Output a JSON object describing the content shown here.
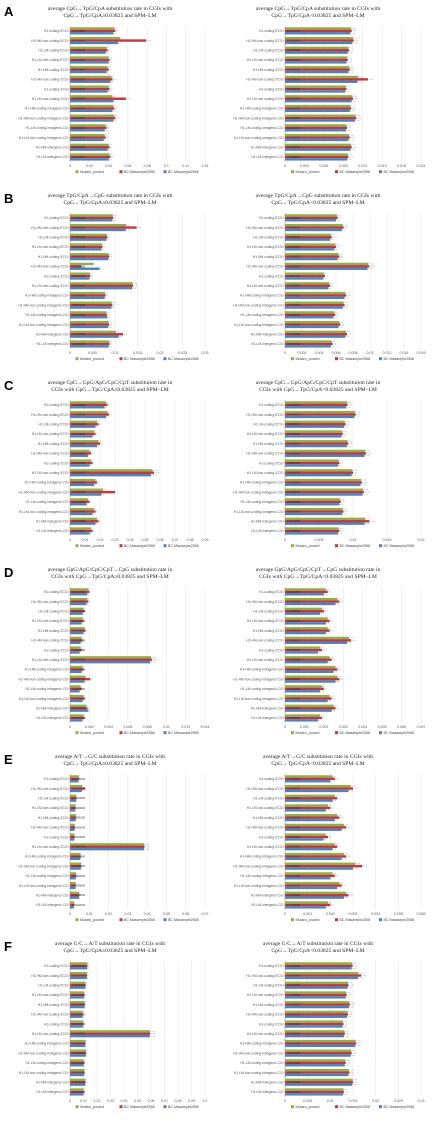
{
  "colors": {
    "s1": "#8db04a",
    "s2": "#c0393b",
    "s3": "#4f81bd",
    "grid": "#d9d9d9",
    "err": "#888888"
  },
  "legend": [
    "Mutaro_pooled",
    "BC Masample2558",
    "BC Masample2558"
  ],
  "categories": [
    "H1-coding-5'CGI",
    "H1-HM-non-coding-5'CGI",
    "H1-LM-coding-5'CGI",
    "H1-LM-non-coding-5'CGI",
    "H1-HM-coding-3'CGI",
    "H1-HM-non-coding-3'CGI",
    "H1-coding-3'CGI",
    "H1-LM-non-coding-3'CGI",
    "H1-HM-coding-intragenic-CGI",
    "H1-HM-non-coding-intragenic-CGI",
    "H1-LM-coding-intragenic-CGI",
    "H1-LM-non-coding-intragenic-CGI",
    "H1-HM-intergenic-CGI",
    "H1-LM-intergenic-CGI"
  ],
  "panels": [
    {
      "label": "A",
      "titles": [
        [
          "average CpG→TpG/CpA substitution rate in CGIs with",
          "CpG→TpG/CpA≥0.03825 and SPM–LM"
        ],
        [
          "average CpG→TpG/CpA substitution rate in CGIs with",
          "CpG→TpG/CpA<0.03825 and SPM–LM"
        ]
      ]
    },
    {
      "label": "B",
      "titles": [
        [
          "average TpG/CpA→CpG substitution rate in CGIs with",
          "CpG→TpG/CpA≥0.03825 and SPM–LM"
        ],
        [
          "average TpG/CpA→CpG substitution rate in CGIs with",
          "CpG→TpG/CpA<0.03825 and SPM–LM"
        ]
      ]
    },
    {
      "label": "C",
      "titles": [
        [
          "average CpG→GpG/ApG/CpC/CpT substitution rate in",
          "CGIs with CpG→TpG/CpA≥0.03825 and SPM–LM"
        ],
        [
          "average CpG→GpG/ApG/CpC/CpT substitution rate in",
          "CGIs with CpG→TpG/CpA<0.03825 and SPM–LM"
        ]
      ]
    },
    {
      "label": "D",
      "titles": [
        [
          "average GpG/ApG/CpC/CpT→CpG substitution rate in",
          "CGIs with CpG→TpG/CpA≥0.03825 and SPM–LM"
        ],
        [
          "average GpG/ApG/CpC/CpT→CpG substitution rate in",
          "CGIs with CpG→TpG/CpA<0.03825 and SPM–LM"
        ]
      ]
    },
    {
      "label": "E",
      "titles": [
        [
          "average A/T→G/C substitution rate in CGIs with",
          "CpG→TpG/CpA≥0.03825 and SPM–LM"
        ],
        [
          "average A/T→G/C substitution rate in CGIs with",
          "CpG→TpG/CpA<0.03825 and SPM–LM"
        ]
      ]
    },
    {
      "label": "F",
      "titles": [
        [
          "average G/C→A/T substitution rate in CGIs with",
          "CpG→TpG/CpA≥0.03825 and SPM–LM"
        ],
        [
          "average G/C→A/T substitution rate in CGIs with",
          "CpG→TpG/CpA<0.03825 and SPM–LM"
        ]
      ]
    }
  ],
  "chart_data": [
    {
      "type": "bar",
      "orientation": "horizontal",
      "panel": "A-left",
      "xlim": [
        0,
        0.14
      ],
      "ticks": [
        "0",
        "0.02",
        "0.04",
        "0.06",
        "0.08",
        "0.1",
        "0.12",
        "0.14"
      ],
      "series": [
        {
          "name": "Mutaro_pooled",
          "values": [
            0.046,
            0.052,
            0.038,
            0.04,
            0.039,
            0.043,
            0.04,
            0.044,
            0.045,
            0.046,
            0.037,
            0.036,
            0.04,
            0.041
          ]
        },
        {
          "name": "BC Masample2558",
          "values": [
            0.047,
            0.079,
            0.039,
            0.041,
            0.04,
            0.044,
            0.041,
            0.058,
            0.046,
            0.047,
            0.038,
            0.037,
            0.041,
            0.042
          ]
        },
        {
          "name": "BC Masample2558",
          "values": [
            0.045,
            0.05,
            0.037,
            0.04,
            0.038,
            0.042,
            0.039,
            0.045,
            0.044,
            0.045,
            0.036,
            0.035,
            0.039,
            0.04
          ]
        }
      ]
    },
    {
      "type": "bar",
      "orientation": "horizontal",
      "panel": "A-right",
      "xlim": [
        0,
        0.021
      ],
      "ticks": [
        "0",
        "0.003",
        "0.006",
        "0.009",
        "0.012",
        "0.015",
        "0.018",
        "0.021"
      ],
      "series": [
        {
          "name": "Mutaro_pooled",
          "values": [
            0.0102,
            0.0105,
            0.0098,
            0.0096,
            0.0099,
            0.0113,
            0.0094,
            0.0104,
            0.0101,
            0.0109,
            0.0095,
            0.0099,
            0.0102,
            0.0097
          ]
        },
        {
          "name": "BC Masample2558",
          "values": [
            0.0103,
            0.0106,
            0.0099,
            0.0097,
            0.01,
            0.0128,
            0.0095,
            0.0105,
            0.0102,
            0.011,
            0.0096,
            0.01,
            0.0103,
            0.0098
          ]
        },
        {
          "name": "BC Masample2558",
          "values": [
            0.0101,
            0.0104,
            0.0097,
            0.0095,
            0.0098,
            0.0112,
            0.0093,
            0.0103,
            0.01,
            0.0108,
            0.0094,
            0.0098,
            0.0101,
            0.0096
          ]
        }
      ]
    },
    {
      "type": "bar",
      "orientation": "horizontal",
      "panel": "B-left",
      "xlim": [
        0,
        0.03
      ],
      "ticks": [
        "0",
        "0.005",
        "0.01",
        "0.015",
        "0.02",
        "0.025",
        "0.03"
      ],
      "series": [
        {
          "name": "Mutaro_pooled",
          "values": [
            0.0095,
            0.0125,
            0.0082,
            0.0071,
            0.0086,
            0.0052,
            0.0044,
            0.0139,
            0.0078,
            0.0093,
            0.0081,
            0.0086,
            0.0102,
            0.0087
          ]
        },
        {
          "name": "BC Masample2558",
          "values": [
            0.0096,
            0.0148,
            0.0083,
            0.0072,
            0.0087,
            0.0025,
            0.0045,
            0.014,
            0.0079,
            0.0094,
            0.0082,
            0.0087,
            0.0118,
            0.0088
          ]
        },
        {
          "name": "BC Masample2558",
          "values": [
            0.0094,
            0.0124,
            0.0081,
            0.007,
            0.0085,
            0.0066,
            0.0043,
            0.0138,
            0.0077,
            0.0092,
            0.0083,
            0.0085,
            0.0108,
            0.0086
          ]
        }
      ]
    },
    {
      "type": "bar",
      "orientation": "horizontal",
      "panel": "B-right",
      "xlim": [
        0,
        0.016
      ],
      "ticks": [
        "0",
        "0.002",
        "0.004",
        "0.006",
        "0.008",
        "0.01",
        "0.012",
        "0.014",
        "0.016"
      ],
      "series": [
        {
          "name": "Mutaro_pooled",
          "values": [
            0.0061,
            0.0068,
            0.0054,
            0.0059,
            0.0063,
            0.0098,
            0.0046,
            0.0052,
            0.0071,
            0.0069,
            0.0058,
            0.0064,
            0.0072,
            0.0055
          ]
        },
        {
          "name": "BC Masample2558",
          "values": [
            0.0062,
            0.0069,
            0.0055,
            0.006,
            0.0064,
            0.0099,
            0.0047,
            0.0053,
            0.0072,
            0.007,
            0.0059,
            0.0065,
            0.0073,
            0.0056
          ]
        },
        {
          "name": "BC Masample2558",
          "values": [
            0.006,
            0.0067,
            0.0053,
            0.0058,
            0.0062,
            0.0097,
            0.0045,
            0.0051,
            0.007,
            0.0068,
            0.0057,
            0.0063,
            0.0071,
            0.0054
          ]
        }
      ]
    },
    {
      "type": "bar",
      "orientation": "horizontal",
      "panel": "C-left",
      "xlim": [
        0,
        0.09
      ],
      "ticks": [
        "0",
        "0.01",
        "0.02",
        "0.03",
        "0.04",
        "0.05",
        "0.06",
        "0.07",
        "0.08",
        "0.09"
      ],
      "series": [
        {
          "name": "Mutaro_pooled",
          "values": [
            0.024,
            0.025,
            0.018,
            0.016,
            0.019,
            0.013,
            0.014,
            0.055,
            0.017,
            0.022,
            0.012,
            0.016,
            0.018,
            0.014
          ]
        },
        {
          "name": "BC Masample2558",
          "values": [
            0.025,
            0.026,
            0.019,
            0.017,
            0.02,
            0.014,
            0.015,
            0.056,
            0.018,
            0.03,
            0.013,
            0.017,
            0.019,
            0.015
          ]
        },
        {
          "name": "BC Masample2558",
          "values": [
            0.023,
            0.024,
            0.017,
            0.015,
            0.018,
            0.012,
            0.013,
            0.054,
            0.016,
            0.021,
            0.011,
            0.015,
            0.017,
            0.013
          ]
        }
      ]
    },
    {
      "type": "bar",
      "orientation": "horizontal",
      "panel": "C-right",
      "xlim": [
        0,
        0.02
      ],
      "ticks": [
        "0",
        "0.005",
        "0.01",
        "0.015",
        "0.02"
      ],
      "series": [
        {
          "name": "Mutaro_pooled",
          "values": [
            0.0091,
            0.0103,
            0.0088,
            0.0084,
            0.0092,
            0.0118,
            0.0079,
            0.0099,
            0.0112,
            0.0115,
            0.0081,
            0.0085,
            0.0118,
            0.0079
          ]
        },
        {
          "name": "BC Masample2558",
          "values": [
            0.0092,
            0.0104,
            0.0089,
            0.0085,
            0.0093,
            0.0119,
            0.008,
            0.01,
            0.0113,
            0.0116,
            0.0082,
            0.0086,
            0.0124,
            0.008
          ]
        },
        {
          "name": "BC Masample2558",
          "values": [
            0.009,
            0.0102,
            0.0087,
            0.0083,
            0.0091,
            0.0117,
            0.0078,
            0.0098,
            0.0111,
            0.0114,
            0.008,
            0.0084,
            0.0117,
            0.0078
          ]
        }
      ]
    },
    {
      "type": "bar",
      "orientation": "horizontal",
      "panel": "D-left",
      "xlim": [
        0,
        0.014
      ],
      "ticks": [
        "0",
        "0.002",
        "0.004",
        "0.006",
        "0.008",
        "0.01",
        "0.012",
        "0.014"
      ],
      "series": [
        {
          "name": "Mutaro_pooled",
          "values": [
            0.0019,
            0.0018,
            0.0014,
            0.0013,
            0.0015,
            0.0012,
            0.0011,
            0.0084,
            0.0013,
            0.0016,
            0.0011,
            0.0014,
            0.0017,
            0.0014
          ]
        },
        {
          "name": "BC Masample2558",
          "values": [
            0.002,
            0.0019,
            0.0015,
            0.0014,
            0.0016,
            0.0013,
            0.0012,
            0.0085,
            0.0014,
            0.0021,
            0.0012,
            0.0015,
            0.0018,
            0.0015
          ]
        },
        {
          "name": "BC Masample2558",
          "values": [
            0.0018,
            0.0017,
            0.0013,
            0.0012,
            0.0014,
            0.0011,
            0.001,
            0.0083,
            0.0012,
            0.0015,
            0.001,
            0.0013,
            0.0019,
            0.0013
          ]
        }
      ]
    },
    {
      "type": "bar",
      "orientation": "horizontal",
      "panel": "D-right",
      "xlim": [
        0,
        0.007
      ],
      "ticks": [
        "0",
        "0.001",
        "0.002",
        "0.003",
        "0.004",
        "0.005",
        "0.006",
        "0.007"
      ],
      "series": [
        {
          "name": "Mutaro_pooled",
          "values": [
            0.0021,
            0.0027,
            0.0019,
            0.0022,
            0.0022,
            0.0033,
            0.0018,
            0.0023,
            0.0026,
            0.0027,
            0.0019,
            0.0023,
            0.0025,
            0.0018
          ]
        },
        {
          "name": "BC Masample2558",
          "values": [
            0.0022,
            0.0028,
            0.002,
            0.0023,
            0.0023,
            0.0034,
            0.0019,
            0.0024,
            0.0027,
            0.0028,
            0.002,
            0.0024,
            0.0026,
            0.0019
          ]
        },
        {
          "name": "BC Masample2558",
          "values": [
            0.002,
            0.0026,
            0.0018,
            0.0021,
            0.0021,
            0.0032,
            0.0017,
            0.0022,
            0.0025,
            0.0026,
            0.0018,
            0.0022,
            0.0024,
            0.0017
          ]
        }
      ]
    },
    {
      "type": "bar",
      "orientation": "horizontal",
      "panel": "E-left",
      "xlim": [
        0,
        0.07
      ],
      "ticks": [
        "0",
        "0.01",
        "0.02",
        "0.03",
        "0.04",
        "0.05",
        "0.06",
        "0.07"
      ],
      "series": [
        {
          "name": "Mutaro_pooled",
          "values": [
            0.0045,
            0.0062,
            0.0032,
            0.0028,
            0.003,
            0.0024,
            0.0023,
            0.0385,
            0.0054,
            0.0057,
            0.0031,
            0.0029,
            0.0047,
            0.0021
          ]
        },
        {
          "name": "BC Masample2558",
          "values": [
            0.0046,
            0.0078,
            0.0033,
            0.0029,
            0.0031,
            0.0025,
            0.0024,
            0.0386,
            0.0055,
            0.0058,
            0.0032,
            0.003,
            0.0048,
            0.0022
          ]
        },
        {
          "name": "BC Masample2558",
          "values": [
            0.0044,
            0.0061,
            0.0031,
            0.0027,
            0.0029,
            0.0023,
            0.0022,
            0.0384,
            0.0053,
            0.0056,
            0.003,
            0.0028,
            0.0046,
            0.002
          ]
        }
      ]
    },
    {
      "type": "bar",
      "orientation": "horizontal",
      "panel": "E-right",
      "xlim": [
        0,
        0.006
      ],
      "ticks": [
        "0",
        "0.001",
        "0.002",
        "0.003",
        "0.004",
        "0.005",
        "0.006"
      ],
      "series": [
        {
          "name": "Mutaro_pooled",
          "values": [
            0.0021,
            0.0029,
            0.0022,
            0.0019,
            0.0023,
            0.0026,
            0.0018,
            0.0022,
            0.0026,
            0.0031,
            0.0021,
            0.0024,
            0.0027,
            0.0019
          ]
        },
        {
          "name": "BC Masample2558",
          "values": [
            0.0022,
            0.003,
            0.0023,
            0.002,
            0.0024,
            0.0027,
            0.0019,
            0.0023,
            0.0027,
            0.0034,
            0.0022,
            0.0025,
            0.0028,
            0.002
          ]
        },
        {
          "name": "BC Masample2558",
          "values": [
            0.002,
            0.0028,
            0.0021,
            0.0018,
            0.0022,
            0.0025,
            0.0017,
            0.0021,
            0.0025,
            0.003,
            0.002,
            0.0023,
            0.0026,
            0.0018
          ]
        }
      ]
    },
    {
      "type": "bar",
      "orientation": "horizontal",
      "panel": "F-left",
      "xlim": [
        0,
        0.1
      ],
      "ticks": [
        "0",
        "0.01",
        "0.02",
        "0.03",
        "0.04",
        "0.05",
        "0.06",
        "0.07",
        "0.08",
        "0.09",
        "0.1"
      ],
      "series": [
        {
          "name": "Mutaro_pooled",
          "values": [
            0.0129,
            0.0126,
            0.0115,
            0.0105,
            0.0108,
            0.0094,
            0.0098,
            0.0592,
            0.0114,
            0.0118,
            0.0102,
            0.0105,
            0.0114,
            0.0101
          ]
        },
        {
          "name": "BC Masample2558",
          "values": [
            0.013,
            0.0127,
            0.0116,
            0.0106,
            0.0109,
            0.0095,
            0.0099,
            0.0593,
            0.0115,
            0.0119,
            0.0103,
            0.0106,
            0.0115,
            0.0102
          ]
        },
        {
          "name": "BC Masample2558",
          "values": [
            0.0128,
            0.0125,
            0.0114,
            0.0104,
            0.0107,
            0.0093,
            0.0097,
            0.0591,
            0.0113,
            0.0117,
            0.0101,
            0.0104,
            0.0113,
            0.01
          ]
        }
      ]
    },
    {
      "type": "bar",
      "orientation": "horizontal",
      "panel": "F-right",
      "xlim": [
        0,
        0.03
      ],
      "ticks": [
        "0",
        "0.005",
        "0.01",
        "0.015",
        "0.02",
        "0.025",
        "0.03"
      ],
      "series": [
        {
          "name": "Mutaro_pooled",
          "values": [
            0.0148,
            0.0162,
            0.0139,
            0.0135,
            0.0142,
            0.0138,
            0.0128,
            0.0131,
            0.0156,
            0.0146,
            0.0133,
            0.0141,
            0.0149,
            0.0129
          ]
        },
        {
          "name": "BC Masample2558",
          "values": [
            0.0149,
            0.0168,
            0.014,
            0.0136,
            0.0143,
            0.0139,
            0.0129,
            0.0132,
            0.0157,
            0.0147,
            0.0134,
            0.0142,
            0.015,
            0.013
          ]
        },
        {
          "name": "BC Masample2558",
          "values": [
            0.0147,
            0.0161,
            0.0138,
            0.0134,
            0.0141,
            0.0137,
            0.0127,
            0.013,
            0.0155,
            0.0145,
            0.0132,
            0.014,
            0.0148,
            0.0128
          ]
        }
      ]
    }
  ]
}
